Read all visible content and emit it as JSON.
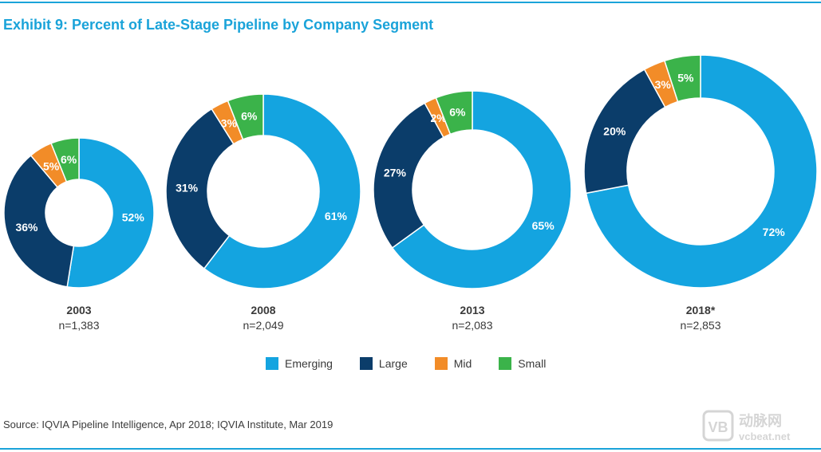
{
  "colors": {
    "Emerging": "#14a4e0",
    "Large": "#0b3d6a",
    "Mid": "#f28c28",
    "Small": "#3bb34a",
    "title": "#1aa3d9"
  },
  "chart_data": {
    "type": "pie",
    "title": "Exhibit 9: Percent of Late-Stage Pipeline by Company Segment",
    "legend_position": "bottom-center",
    "categories": [
      "Emerging",
      "Large",
      "Mid",
      "Small"
    ],
    "donuts": [
      {
        "year": "2003",
        "n": "n=1,383",
        "values": [
          52,
          36,
          5,
          6
        ],
        "labels": [
          "52%",
          "36%",
          "5%",
          "6%"
        ]
      },
      {
        "year": "2008",
        "n": "n=2,049",
        "values": [
          61,
          31,
          3,
          6
        ],
        "labels": [
          "61%",
          "31%",
          "3%",
          "6%"
        ]
      },
      {
        "year": "2013",
        "n": "n=2,083",
        "values": [
          65,
          27,
          2,
          6
        ],
        "labels": [
          "65%",
          "27%",
          "2%",
          "6%"
        ]
      },
      {
        "year": "2018*",
        "n": "n=2,853",
        "values": [
          72,
          20,
          3,
          5
        ],
        "labels": [
          "72%",
          "20%",
          "3%",
          "5%"
        ]
      }
    ]
  },
  "source": "Source: IQVIA Pipeline Intelligence, Apr 2018; IQVIA Institute, Mar 2019",
  "watermark": {
    "logo": "VB",
    "brand": "动脉网",
    "url": "vcbeat.net"
  }
}
